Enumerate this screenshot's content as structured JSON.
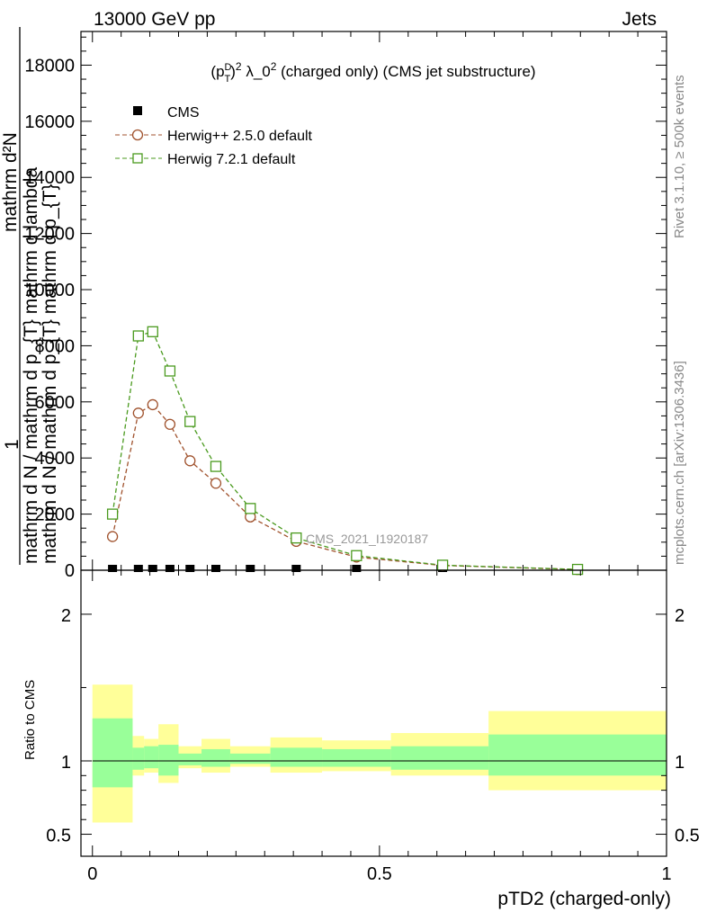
{
  "header": {
    "left": "13000 GeV pp",
    "right": "Jets"
  },
  "side_labels": {
    "rivet": "Rivet 3.1.10, ≥ 500k events",
    "mcplots": "mcplots.cern.ch [arXiv:1306.3436]"
  },
  "chart_data": [
    {
      "panel": "main",
      "type": "line",
      "title_parts": {
        "p": "(p",
        "sup_d": "D",
        "sub_t": "T",
        "close": ")",
        "sq": "2",
        "lambda": " λ_0",
        "sq2": "2",
        "rest": " (charged only) (CMS jet substructure)"
      },
      "ylabel_parts": {
        "numerator": "1",
        "denominator": "mathrm d N / mathrm d p_{T} mathrm d p_{T} mathrm d N",
        "line1": "mathrm d²N",
        "line2": "mathrm d p_T mathrm d lambda",
        "line3": "mathrm d N / mathrm d p_T mathrm d p",
        "line4": "mathrm d N / mathrm d p_T"
      },
      "ylabel_rows": [
        "mathrm d N / mathrm d p_{T} mathrm d lambda",
        "mathrm d N / mathrm d p_{T} mathrm d p_{T}"
      ],
      "y_ticks": [
        0,
        2000,
        4000,
        6000,
        8000,
        10000,
        12000,
        14000,
        16000,
        18000
      ],
      "y_tick_labels": [
        "0",
        "2000",
        "4000",
        "6000",
        "8000",
        "10000",
        "12000",
        "14000",
        "16000",
        "18000"
      ],
      "ylim": [
        0,
        19200
      ],
      "xlim": [
        -0.02,
        1.0
      ],
      "watermark": "CMS_2021_I1920187",
      "legend": {
        "position": "top-left",
        "entries": [
          "CMS",
          "Herwig++ 2.5.0 default",
          "Herwig 7.2.1 default"
        ]
      },
      "series": [
        {
          "name": "CMS",
          "color": "#000000",
          "marker": "square-filled",
          "x": [
            0.035,
            0.08,
            0.105,
            0.135,
            0.17,
            0.215,
            0.275,
            0.355,
            0.46,
            0.61,
            0.845
          ],
          "y": [
            30,
            30,
            30,
            30,
            30,
            30,
            30,
            30,
            30,
            30,
            30
          ]
        },
        {
          "name": "Herwig++ 2.5.0 default",
          "color": "#a0522d",
          "marker": "circle-open",
          "x": [
            0.035,
            0.08,
            0.105,
            0.135,
            0.17,
            0.215,
            0.275,
            0.355,
            0.46,
            0.61,
            0.845
          ],
          "y": [
            1200,
            5600,
            5900,
            5200,
            3900,
            3100,
            1900,
            1030,
            470,
            170,
            25
          ]
        },
        {
          "name": "Herwig 7.2.1 default",
          "color": "#4a9a1e",
          "marker": "square-open",
          "x": [
            0.035,
            0.08,
            0.105,
            0.135,
            0.17,
            0.215,
            0.275,
            0.355,
            0.46,
            0.61,
            0.845
          ],
          "y": [
            2000,
            8350,
            8500,
            7100,
            5300,
            3700,
            2200,
            1150,
            520,
            180,
            30
          ]
        }
      ]
    },
    {
      "panel": "ratio",
      "type": "area",
      "ylabel": "Ratio to CMS",
      "ylim": [
        0.35,
        2.3
      ],
      "y_ticks": [
        0.5,
        1,
        2
      ],
      "y_tick_labels": [
        "0.5",
        "1",
        "2"
      ],
      "xlim": [
        -0.02,
        1.0
      ],
      "x_ticks": [
        0,
        0.5,
        1
      ],
      "x_tick_labels": [
        "0",
        "0.5",
        "1"
      ],
      "xlabel": "pTD2 (charged-only)",
      "bands": {
        "edges": [
          0.0,
          0.07,
          0.09,
          0.115,
          0.15,
          0.19,
          0.24,
          0.31,
          0.4,
          0.52,
          0.69,
          1.0
        ],
        "yellow_low": [
          0.58,
          0.9,
          0.92,
          0.85,
          0.95,
          0.92,
          0.96,
          0.92,
          0.93,
          0.9,
          0.8
        ],
        "yellow_high": [
          1.52,
          1.17,
          1.15,
          1.25,
          1.1,
          1.15,
          1.1,
          1.16,
          1.14,
          1.19,
          1.34
        ],
        "green_low": [
          0.82,
          0.94,
          0.95,
          0.9,
          0.97,
          0.96,
          0.98,
          0.96,
          0.96,
          0.94,
          0.9
        ],
        "green_high": [
          1.29,
          1.09,
          1.1,
          1.11,
          1.05,
          1.08,
          1.05,
          1.09,
          1.08,
          1.1,
          1.18
        ],
        "yellow_color": "#ffff99",
        "green_color": "#99ff99"
      }
    }
  ]
}
